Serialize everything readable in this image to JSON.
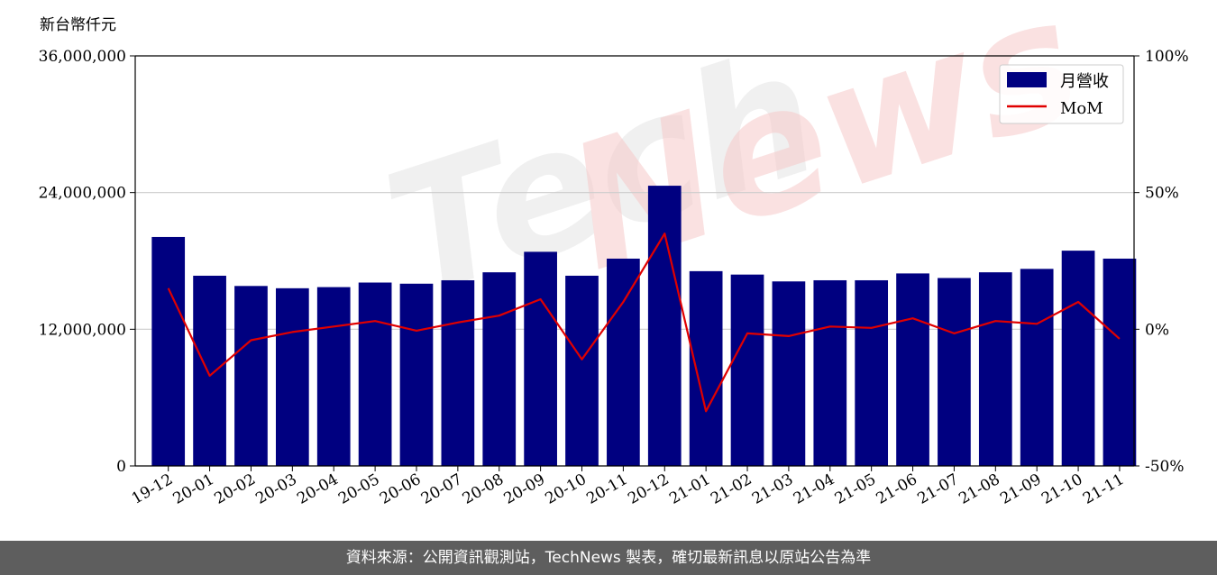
{
  "footer": {
    "text": "資料來源：公開資訊觀測站，TechNews 製表，確切最新訊息以原站公告為準"
  },
  "watermark": "TechNews",
  "colors": {
    "bar": "#000080",
    "line": "#e00000",
    "grid": "#cccccc",
    "footer_bg": "#5e5e5e"
  },
  "chart_data": {
    "type": "bar+line",
    "ylabel_left": "新台幣仟元",
    "ylim_left": [
      0,
      36000000
    ],
    "ylim_right": [
      -50,
      100
    ],
    "yticks_left": [
      "0",
      "12,000,000",
      "24,000,000",
      "36,000,000"
    ],
    "yticks_right": [
      "-50%",
      "0%",
      "50%",
      "100%"
    ],
    "grid": "horizontal",
    "legend_position": "top-right",
    "categories": [
      "19-12",
      "20-01",
      "20-02",
      "20-03",
      "20-04",
      "20-05",
      "20-06",
      "20-07",
      "20-08",
      "20-09",
      "20-10",
      "20-11",
      "20-12",
      "21-01",
      "21-02",
      "21-03",
      "21-04",
      "21-05",
      "21-06",
      "21-07",
      "21-08",
      "21-09",
      "21-10",
      "21-11"
    ],
    "series": [
      {
        "name": "月營收",
        "type": "bar",
        "axis": "left",
        "values": [
          20100000,
          16700000,
          15800000,
          15600000,
          15700000,
          16100000,
          16000000,
          16300000,
          17000000,
          18800000,
          16700000,
          18200000,
          24600000,
          17100000,
          16800000,
          16200000,
          16300000,
          16300000,
          16900000,
          16500000,
          17000000,
          17300000,
          18900000,
          18200000
        ]
      },
      {
        "name": "MoM",
        "type": "line",
        "axis": "right",
        "values": [
          15,
          -17,
          -4,
          -1,
          1,
          3,
          -0.5,
          2.5,
          5,
          11,
          -11,
          10,
          35,
          -30,
          -1.5,
          -2.5,
          1,
          0.5,
          4,
          -1.5,
          3,
          2,
          10,
          -3.5
        ]
      }
    ]
  }
}
